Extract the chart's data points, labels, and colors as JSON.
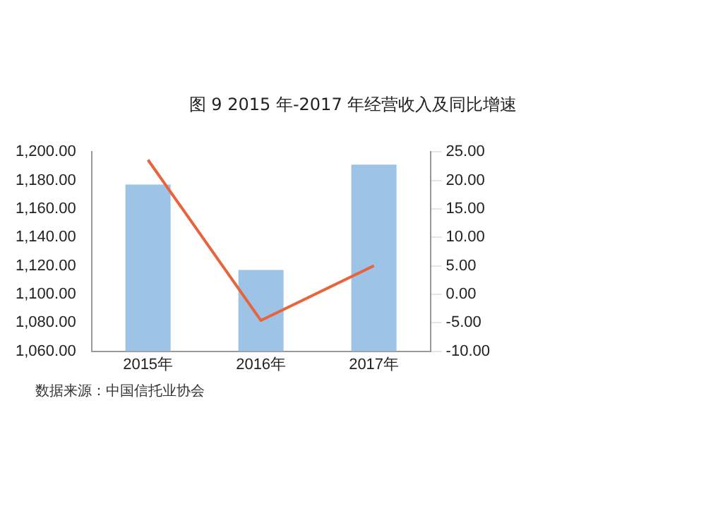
{
  "chart_data": {
    "type": "bar",
    "title": "图 9 2015 年-2017 年经营收入及同比增速",
    "categories": [
      "2015年",
      "2016年",
      "2017年"
    ],
    "series": [
      {
        "color": "#9dc3e6",
        "values": [
          1177,
          1117,
          1191
        ]
      },
      {
        "type": "line",
        "axis": "y2",
        "color": "#e8643c",
        "values": [
          23.6,
          -4.6,
          5
        ]
      }
    ],
    "ylim": [
      1060,
      1200
    ],
    "yticks": [
      {
        "value": 1060,
        "label": "1,060.00"
      },
      {
        "value": 1080,
        "label": "1,080.00"
      },
      {
        "value": 1100,
        "label": "1,100.00"
      },
      {
        "value": 1120,
        "label": "1,120.00"
      },
      {
        "value": 1140,
        "label": "1,140.00"
      },
      {
        "value": 1160,
        "label": "1,160.00"
      },
      {
        "value": 1180,
        "label": "1,180.00"
      },
      {
        "value": 1200,
        "label": "1,200.00"
      }
    ],
    "y2lim": [
      -10,
      25
    ],
    "y2ticks": [
      {
        "value": -10,
        "label": "-10.00"
      },
      {
        "value": -5,
        "label": "-5.00"
      },
      {
        "value": 0,
        "label": "0.00"
      },
      {
        "value": 5,
        "label": "5.00"
      },
      {
        "value": 10,
        "label": "10.00"
      },
      {
        "value": 15,
        "label": "15.00"
      },
      {
        "value": 20,
        "label": "20.00"
      },
      {
        "value": 25,
        "label": "25.00"
      }
    ],
    "grid": false,
    "legend": false,
    "marker": "none",
    "annotations": [
      "数据来源：中国信托业协会"
    ]
  }
}
